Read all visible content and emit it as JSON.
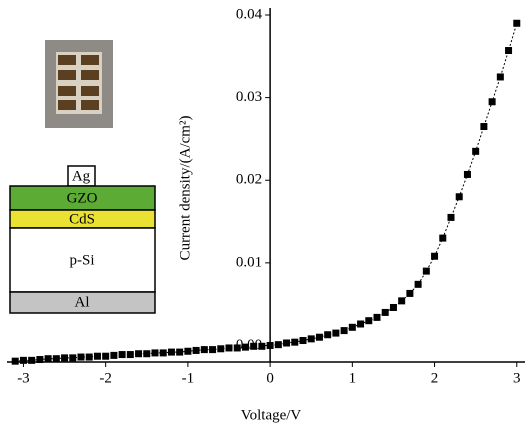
{
  "chart_data": {
    "type": "scatter",
    "x_label": "Voltage/V",
    "y_label": "Current density/(A/cm²)",
    "inset_layers": [
      "Ag",
      "GZO",
      "CdS",
      "p-Si",
      "Al"
    ],
    "x": [
      -3.1,
      -3.0,
      -2.9,
      -2.8,
      -2.7,
      -2.6,
      -2.5,
      -2.4,
      -2.3,
      -2.2,
      -2.1,
      -2.0,
      -1.9,
      -1.8,
      -1.7,
      -1.6,
      -1.5,
      -1.4,
      -1.3,
      -1.2,
      -1.1,
      -1.0,
      -0.9,
      -0.8,
      -0.7,
      -0.6,
      -0.5,
      -0.4,
      -0.3,
      -0.2,
      -0.1,
      0,
      0.1,
      0.2,
      0.3,
      0.4,
      0.5,
      0.6,
      0.7,
      0.8,
      0.9,
      1.0,
      1.1,
      1.2,
      1.3,
      1.4,
      1.5,
      1.6,
      1.7,
      1.8,
      1.9,
      2.0,
      2.1,
      2.2,
      2.3,
      2.4,
      2.5,
      2.6,
      2.7,
      2.8,
      2.9,
      3.0
    ],
    "values": [
      -0.0019,
      -0.0018,
      -0.0018,
      -0.0017,
      -0.0016,
      -0.0016,
      -0.0015,
      -0.0015,
      -0.0014,
      -0.0014,
      -0.0013,
      -0.0013,
      -0.0012,
      -0.0011,
      -0.0011,
      -0.001,
      -0.001,
      -0.0009,
      -0.0009,
      -0.0008,
      -0.0008,
      -0.0007,
      -0.0006,
      -0.0005,
      -0.0005,
      -0.0004,
      -0.0003,
      -0.0003,
      -0.0002,
      -0.0001,
      -0.0001,
      0,
      0.0001,
      0.0003,
      0.0004,
      0.0006,
      0.0008,
      0.001,
      0.0013,
      0.0015,
      0.0018,
      0.0022,
      0.0026,
      0.003,
      0.0034,
      0.004,
      0.0046,
      0.0054,
      0.0063,
      0.0074,
      0.009,
      0.0108,
      0.013,
      0.0155,
      0.018,
      0.0207,
      0.0235,
      0.0265,
      0.0295,
      0.0325,
      0.0357,
      0.039
    ],
    "color": "#000000",
    "xlim": [
      -3.2,
      3.1
    ],
    "xticks": [
      -3,
      -2,
      -1,
      0,
      1,
      2,
      3
    ],
    "ylim": [
      -0.002,
      0.04
    ],
    "yticks": [
      {
        "value": 0,
        "label": "0.00"
      },
      0.01,
      0.02,
      0.03,
      0.04
    ]
  }
}
